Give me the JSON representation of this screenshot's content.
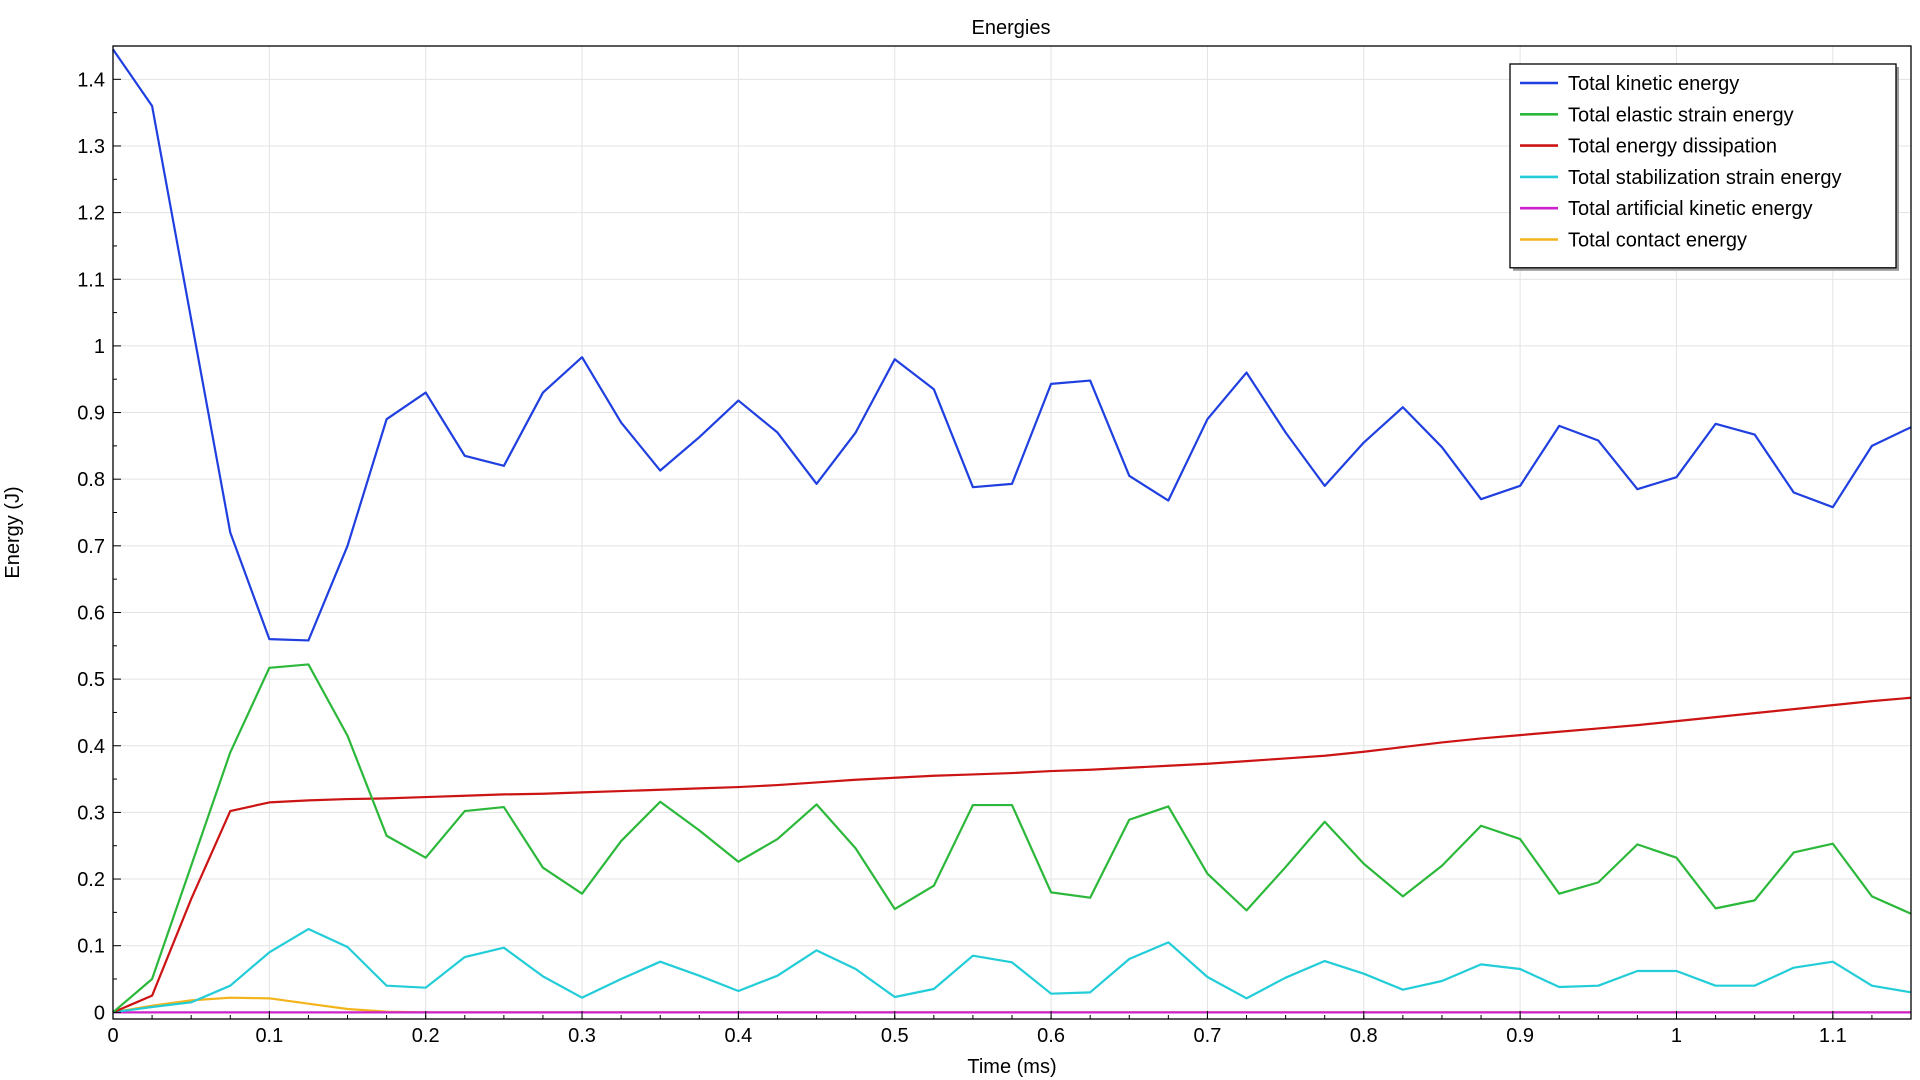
{
  "chart_data": {
    "type": "line",
    "title": "Energies",
    "xlabel": "Time (ms)",
    "ylabel": "Energy (J)",
    "xlim": [
      0,
      1.15
    ],
    "ylim": [
      -0.01,
      1.45
    ],
    "xticks": [
      0,
      0.1,
      0.2,
      0.3,
      0.4,
      0.5,
      0.6,
      0.7,
      0.8,
      0.9,
      1,
      1.1
    ],
    "yticks": [
      0,
      0.1,
      0.2,
      0.3,
      0.4,
      0.5,
      0.6,
      0.7,
      0.8,
      0.9,
      1,
      1.1,
      1.2,
      1.3,
      1.4
    ],
    "grid": true,
    "legend_position": "top-right",
    "x": [
      0,
      0.025,
      0.05,
      0.075,
      0.1,
      0.125,
      0.15,
      0.175,
      0.2,
      0.225,
      0.25,
      0.275,
      0.3,
      0.325,
      0.35,
      0.375,
      0.4,
      0.425,
      0.45,
      0.475,
      0.5,
      0.525,
      0.55,
      0.575,
      0.6,
      0.625,
      0.65,
      0.675,
      0.7,
      0.725,
      0.75,
      0.775,
      0.8,
      0.825,
      0.85,
      0.875,
      0.9,
      0.925,
      0.95,
      0.975,
      1,
      1.025,
      1.05,
      1.075,
      1.1,
      1.125,
      1.15
    ],
    "series": [
      {
        "name": "Total kinetic energy",
        "color": "#1f3fe0",
        "values": [
          1.445,
          1.36,
          1.04,
          0.72,
          0.56,
          0.558,
          0.7,
          0.89,
          0.93,
          0.835,
          0.82,
          0.93,
          0.983,
          0.885,
          0.813,
          0.863,
          0.918,
          0.87,
          0.793,
          0.87,
          0.98,
          0.935,
          0.788,
          0.793,
          0.943,
          0.948,
          0.805,
          0.768,
          0.89,
          0.96,
          0.87,
          0.79,
          0.855,
          0.908,
          0.848,
          0.77,
          0.79,
          0.88,
          0.858,
          0.785,
          0.803,
          0.883,
          0.867,
          0.78,
          0.758,
          0.85,
          0.878
        ]
      },
      {
        "name": "Total elastic strain energy",
        "color": "#2cb83a",
        "values": [
          0,
          0.05,
          0.22,
          0.39,
          0.517,
          0.522,
          0.415,
          0.265,
          0.232,
          0.302,
          0.308,
          0.217,
          0.178,
          0.257,
          0.316,
          0.273,
          0.226,
          0.26,
          0.312,
          0.246,
          0.155,
          0.19,
          0.311,
          0.311,
          0.18,
          0.172,
          0.289,
          0.309,
          0.208,
          0.153,
          0.218,
          0.286,
          0.223,
          0.174,
          0.22,
          0.28,
          0.26,
          0.178,
          0.195,
          0.252,
          0.232,
          0.156,
          0.168,
          0.24,
          0.253,
          0.174,
          0.148
        ]
      },
      {
        "name": "Total energy dissipation",
        "color": "#cc1414",
        "values": [
          0,
          0.025,
          0.17,
          0.302,
          0.315,
          0.318,
          0.32,
          0.321,
          0.323,
          0.325,
          0.327,
          0.328,
          0.33,
          0.332,
          0.334,
          0.336,
          0.338,
          0.341,
          0.345,
          0.349,
          0.352,
          0.355,
          0.357,
          0.359,
          0.362,
          0.364,
          0.367,
          0.37,
          0.373,
          0.377,
          0.381,
          0.385,
          0.391,
          0.398,
          0.405,
          0.411,
          0.416,
          0.421,
          0.426,
          0.431,
          0.437,
          0.443,
          0.449,
          0.455,
          0.461,
          0.467,
          0.472
        ]
      },
      {
        "name": "Total stabilization strain energy",
        "color": "#22cdd8",
        "values": [
          0,
          0.008,
          0.015,
          0.04,
          0.09,
          0.125,
          0.098,
          0.04,
          0.037,
          0.083,
          0.097,
          0.054,
          0.022,
          0.05,
          0.076,
          0.055,
          0.032,
          0.055,
          0.093,
          0.065,
          0.023,
          0.035,
          0.085,
          0.075,
          0.028,
          0.03,
          0.08,
          0.105,
          0.053,
          0.021,
          0.052,
          0.077,
          0.058,
          0.034,
          0.047,
          0.072,
          0.065,
          0.038,
          0.04,
          0.062,
          0.062,
          0.04,
          0.04,
          0.067,
          0.076,
          0.04,
          0.03
        ]
      },
      {
        "name": "Total artificial kinetic energy",
        "color": "#cc22cc",
        "values": [
          0,
          0,
          0,
          0,
          0,
          0,
          0,
          0,
          0,
          0,
          0,
          0,
          0,
          0,
          0,
          0,
          0,
          0,
          0,
          0,
          0,
          0,
          0,
          0,
          0,
          0,
          0,
          0,
          0,
          0,
          0,
          0,
          0,
          0,
          0,
          0,
          0,
          0,
          0,
          0,
          0,
          0,
          0,
          0,
          0,
          0,
          0
        ]
      },
      {
        "name": "Total contact energy",
        "color": "#f2b41a",
        "values": [
          0,
          0.01,
          0.018,
          0.022,
          0.021,
          0.013,
          0.005,
          0.001,
          0,
          0,
          0,
          0,
          0,
          0,
          0,
          0,
          0,
          0,
          0,
          0,
          0,
          0,
          0,
          0,
          0,
          0,
          0,
          0,
          0,
          0,
          0,
          0,
          0,
          0,
          0,
          0,
          0,
          0,
          0,
          0,
          0,
          0,
          0,
          0,
          0,
          0,
          0
        ]
      }
    ]
  }
}
